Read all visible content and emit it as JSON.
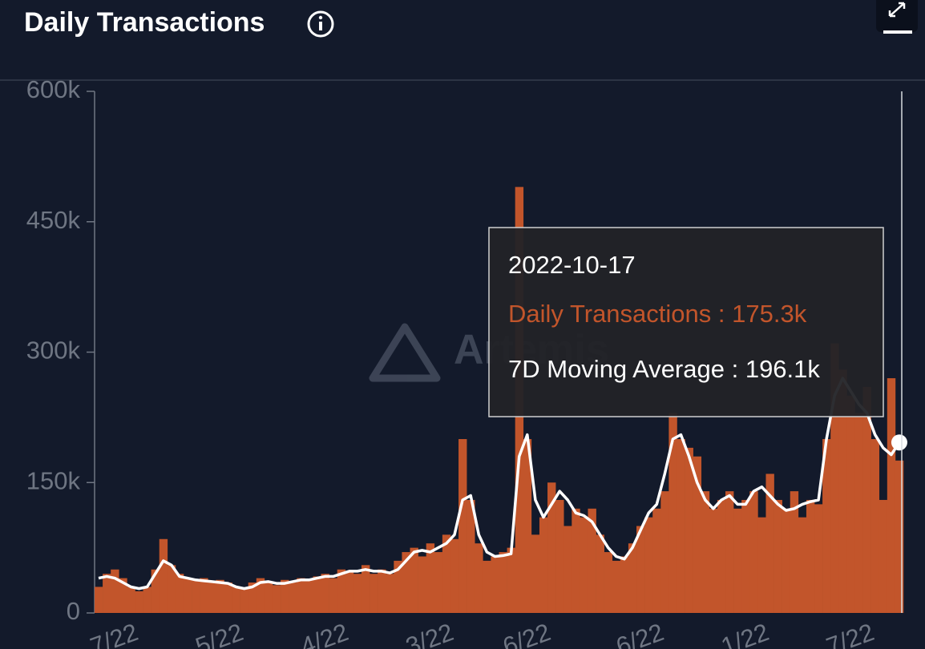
{
  "chart_data": {
    "type": "bar",
    "title": "Daily Transactions",
    "watermark": "Artemis",
    "categories": [
      null,
      null,
      "7/22",
      null,
      null,
      null,
      null,
      null,
      null,
      null,
      null,
      null,
      null,
      null,
      null,
      "5/22",
      null,
      null,
      null,
      null,
      null,
      null,
      null,
      null,
      null,
      null,
      null,
      null,
      "4/22",
      null,
      null,
      null,
      null,
      null,
      null,
      null,
      null,
      null,
      null,
      null,
      null,
      "3/22",
      null,
      null,
      null,
      null,
      null,
      null,
      null,
      null,
      null,
      null,
      null,
      "6/22",
      null,
      null,
      null,
      null,
      null,
      null,
      null,
      null,
      null,
      null,
      null,
      null,
      null,
      "6/22",
      null,
      null,
      null,
      null,
      null,
      null,
      null,
      null,
      null,
      null,
      null,
      null,
      "1/22",
      null,
      null,
      null,
      null,
      null,
      null,
      null,
      null,
      null,
      null,
      null,
      null,
      "7/22",
      null,
      null,
      null,
      null,
      null,
      null
    ],
    "series": [
      {
        "name": "Daily Transactions",
        "color": "#c2552b",
        "values": [
          30000,
          45000,
          50000,
          40000,
          30000,
          25000,
          30000,
          50000,
          85000,
          55000,
          45000,
          40000,
          38000,
          40000,
          35000,
          38000,
          35000,
          30000,
          28000,
          35000,
          40000,
          35000,
          32000,
          38000,
          35000,
          40000,
          38000,
          42000,
          45000,
          40000,
          50000,
          48000,
          45000,
          55000,
          45000,
          50000,
          45000,
          60000,
          70000,
          75000,
          65000,
          80000,
          70000,
          90000,
          85000,
          200000,
          130000,
          80000,
          60000,
          65000,
          70000,
          75000,
          490000,
          200000,
          90000,
          110000,
          150000,
          130000,
          100000,
          120000,
          110000,
          120000,
          90000,
          70000,
          60000,
          65000,
          80000,
          100000,
          110000,
          120000,
          140000,
          230000,
          200000,
          190000,
          180000,
          140000,
          120000,
          130000,
          140000,
          120000,
          130000,
          140000,
          110000,
          160000,
          130000,
          120000,
          140000,
          110000,
          130000,
          125000,
          200000,
          310000,
          280000,
          250000,
          230000,
          260000,
          200000,
          130000,
          270000,
          175300
        ]
      },
      {
        "name": "7D Moving Average",
        "type": "line",
        "color": "#ffffff",
        "values": [
          40000,
          42000,
          40000,
          35000,
          30000,
          28000,
          30000,
          45000,
          60000,
          55000,
          42000,
          40000,
          38000,
          37000,
          36000,
          35000,
          34000,
          30000,
          28000,
          30000,
          35000,
          36000,
          34000,
          34000,
          36000,
          38000,
          38000,
          40000,
          42000,
          42000,
          45000,
          48000,
          48000,
          50000,
          48000,
          48000,
          46000,
          50000,
          60000,
          70000,
          72000,
          70000,
          75000,
          80000,
          90000,
          130000,
          135000,
          90000,
          70000,
          65000,
          66000,
          68000,
          180000,
          205000,
          130000,
          110000,
          125000,
          140000,
          130000,
          115000,
          112000,
          105000,
          90000,
          75000,
          65000,
          62000,
          75000,
          95000,
          115000,
          125000,
          160000,
          200000,
          205000,
          180000,
          150000,
          130000,
          120000,
          130000,
          135000,
          125000,
          125000,
          140000,
          145000,
          135000,
          125000,
          118000,
          120000,
          125000,
          128000,
          130000,
          200000,
          250000,
          270000,
          255000,
          240000,
          230000,
          205000,
          190000,
          182000,
          196100
        ]
      }
    ],
    "ylim": [
      0,
      600000
    ],
    "yticks": [
      {
        "value": 0,
        "label": "0"
      },
      {
        "value": 150000,
        "label": "150k"
      },
      {
        "value": 300000,
        "label": "300k"
      },
      {
        "value": 450000,
        "label": "450k"
      },
      {
        "value": 600000,
        "label": "600k"
      }
    ],
    "tooltip": {
      "date": "2022-10-17",
      "separator": " : ",
      "value_labels": [
        "175.3k",
        "196.1k"
      ]
    }
  }
}
